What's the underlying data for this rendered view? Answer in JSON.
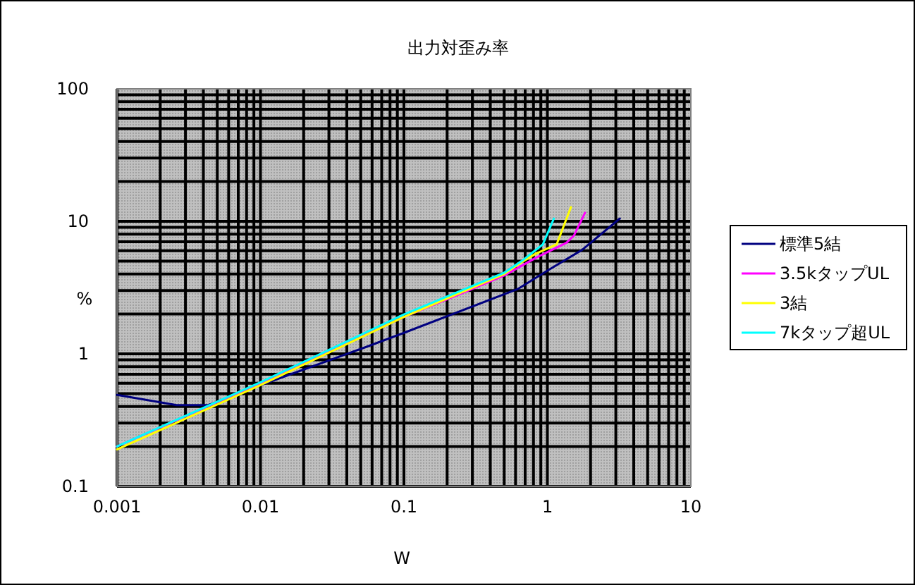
{
  "chart_data": {
    "type": "line",
    "title": "出力対歪み率",
    "xlabel": "W",
    "ylabel": "%",
    "log": "xy",
    "grid": true,
    "legend": "right",
    "marker": "none",
    "line_style": "solid",
    "xlim": [
      0.001,
      10
    ],
    "xticks": [
      0.001,
      0.01,
      0.1,
      1,
      10
    ],
    "ylim": [
      0.1,
      100
    ],
    "yticks": [
      0.1,
      1,
      10,
      100
    ],
    "series": [
      {
        "name": "標準5結",
        "color": "#000080",
        "x": [
          0.001,
          0.0026,
          0.0043,
          0.0049,
          0.01,
          0.055,
          0.1,
          0.62,
          1.0,
          1.75,
          3.2
        ],
        "values": [
          0.49,
          0.41,
          0.41,
          0.43,
          0.58,
          1.13,
          1.44,
          3.08,
          4.24,
          6.1,
          10.5
        ]
      },
      {
        "name": "3.5kタップUL",
        "color": "#ff00ff",
        "x": [
          0.001,
          0.01,
          0.1,
          0.25,
          0.5,
          0.83,
          1.36,
          1.53,
          1.83
        ],
        "values": [
          0.2,
          0.6,
          1.9,
          2.85,
          3.9,
          5.3,
          6.9,
          7.8,
          11.6
        ]
      },
      {
        "name": "3結",
        "color": "#ffff00",
        "x": [
          0.001,
          0.01,
          0.1,
          0.5,
          0.66,
          0.83,
          1.16,
          1.46
        ],
        "values": [
          0.19,
          0.58,
          1.9,
          4.0,
          4.9,
          5.7,
          6.7,
          12.8
        ]
      },
      {
        "name": "7kタップ超UL",
        "color": "#00ffff",
        "x": [
          0.001,
          0.01,
          0.1,
          0.5,
          0.66,
          0.93,
          1.11
        ],
        "values": [
          0.2,
          0.61,
          1.98,
          4.1,
          5.0,
          6.7,
          10.5
        ]
      }
    ]
  }
}
